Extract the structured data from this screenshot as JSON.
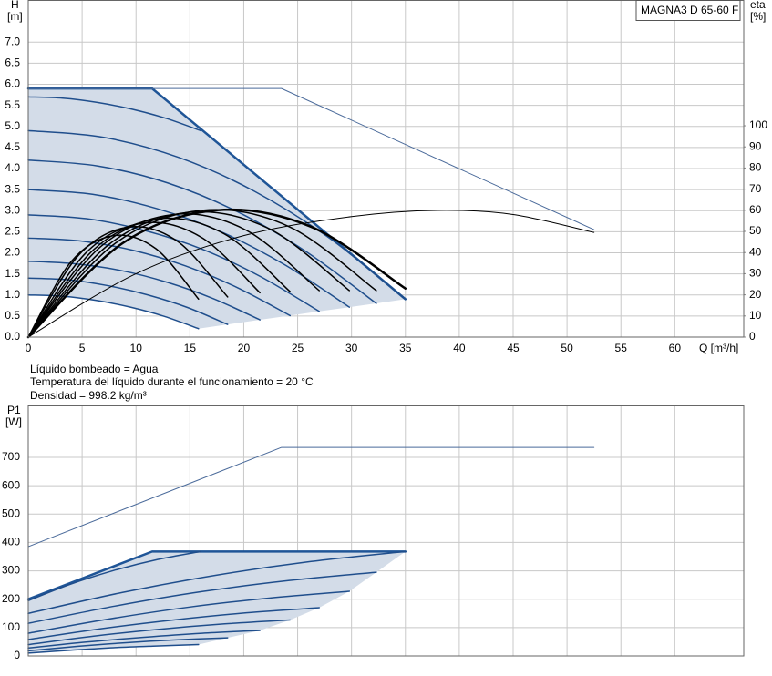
{
  "chart_data": [
    {
      "type": "line",
      "model": "MAGNA3 D 65-60 F",
      "y_label": "H",
      "y_unit": "[m]",
      "y2_label": "eta",
      "y2_unit": "[%]",
      "x_label": "Q [m³/h]",
      "notes": [
        "Líquido bombeado = Agua",
        "Temperatura del líquido durante el funcionamiento = 20 °C",
        "Densidad = 998.2 kg/m³"
      ],
      "xlim": [
        0,
        66.4
      ],
      "xticks": [
        0,
        5,
        10,
        15,
        20,
        25,
        30,
        35,
        40,
        45,
        50,
        55,
        60
      ],
      "xtick_labels": true,
      "ylim": [
        0,
        8
      ],
      "yticks": [
        {
          "value": 0,
          "label": "0.0"
        },
        0.5,
        {
          "value": 1,
          "label": "1.0"
        },
        1.5,
        {
          "value": 2,
          "label": "2.0"
        },
        2.5,
        {
          "value": 3,
          "label": "3.0"
        },
        3.5,
        {
          "value": 4,
          "label": "4.0"
        },
        4.5,
        {
          "value": 5,
          "label": "5.0"
        },
        5.5,
        {
          "value": 6,
          "label": "6.0"
        },
        6.5,
        {
          "value": 7,
          "label": "7.0"
        }
      ],
      "y2lim": [
        0,
        159.5
      ],
      "y2ticks": [
        0,
        10,
        20,
        30,
        40,
        50,
        60,
        70,
        80,
        90,
        100
      ],
      "grid": true,
      "area_color": "#d3dce8",
      "series": [
        {
          "x": [
            0,
            11.5,
            35
          ],
          "values": [
            5.9,
            5.9,
            0.9
          ],
          "color": "#1f5597",
          "width": 2.5,
          "smooth": false
        },
        {
          "x": [
            0,
            23.5,
            52.5
          ],
          "values": [
            5.9,
            5.9,
            2.55
          ],
          "color": "#4a6a9a",
          "width": 1,
          "smooth": false
        },
        {
          "x": [
            0,
            3.2,
            6.4,
            9.6,
            12.8,
            16
          ],
          "values": [
            5.7,
            5.67,
            5.57,
            5.41,
            5.19,
            4.9
          ],
          "color": "#1f4e8c",
          "width": 1.5,
          "smooth": true
        },
        {
          "x": [
            0,
            7,
            14,
            21,
            28,
            35
          ],
          "values": [
            4.9,
            4.74,
            4.26,
            3.46,
            2.34,
            0.9
          ],
          "color": "#1f4e8c",
          "width": 1.5,
          "smooth": true
        },
        {
          "x": [
            0,
            6.46,
            12.92,
            19.38,
            25.84,
            32.3
          ],
          "values": [
            4.2,
            4.06,
            3.66,
            2.98,
            2.02,
            0.8
          ],
          "color": "#1f4e8c",
          "width": 1.5,
          "smooth": true
        },
        {
          "x": [
            0,
            5.96,
            11.92,
            17.88,
            23.84,
            29.8
          ],
          "values": [
            3.5,
            3.39,
            3.05,
            2.5,
            1.71,
            0.71
          ],
          "color": "#1f4e8c",
          "width": 1.5,
          "smooth": true
        },
        {
          "x": [
            0,
            5.4,
            10.8,
            16.2,
            21.6,
            27
          ],
          "values": [
            2.9,
            2.81,
            2.53,
            2.08,
            1.43,
            0.61
          ],
          "color": "#1f4e8c",
          "width": 1.5,
          "smooth": true
        },
        {
          "x": [
            0,
            4.86,
            9.72,
            14.58,
            19.44,
            24.3
          ],
          "values": [
            2.35,
            2.28,
            2.06,
            1.69,
            1.17,
            0.51
          ],
          "color": "#1f4e8c",
          "width": 1.5,
          "smooth": true
        },
        {
          "x": [
            0,
            4.3,
            8.6,
            12.9,
            17.2,
            21.5
          ],
          "values": [
            1.8,
            1.74,
            1.58,
            1.3,
            0.91,
            0.41
          ],
          "color": "#1f4e8c",
          "width": 1.5,
          "smooth": true
        },
        {
          "x": [
            0,
            3.7,
            7.4,
            11.1,
            14.8,
            18.5
          ],
          "values": [
            1.4,
            1.36,
            1.22,
            1.0,
            0.7,
            0.3
          ],
          "color": "#1f4e8c",
          "width": 1.5,
          "smooth": true
        },
        {
          "x": [
            0,
            3.16,
            6.32,
            9.48,
            12.64,
            15.8
          ],
          "values": [
            1.0,
            0.97,
            0.87,
            0.71,
            0.49,
            0.2
          ],
          "color": "#1f4e8c",
          "width": 1.5,
          "smooth": true
        },
        {
          "x": [
            0,
            10,
            20,
            30,
            38,
            45,
            52.5
          ],
          "values": [
            0,
            30,
            48,
            57,
            60,
            58,
            49.5
          ],
          "color": "#000000",
          "width": 1,
          "smooth": true,
          "axis": "y2"
        },
        {
          "x": [
            0,
            8.75,
            17.5,
            26.25,
            35
          ],
          "values": [
            0,
            44.4,
            60,
            52.2,
            23
          ],
          "color": "#000000",
          "width": 2.5,
          "smooth": true,
          "axis": "y2"
        },
        {
          "x": [
            0,
            8.08,
            16.15,
            24.23,
            32.3
          ],
          "values": [
            0,
            44.4,
            60,
            52.2,
            22
          ],
          "color": "#000000",
          "width": 1.5,
          "smooth": true,
          "axis": "y2"
        },
        {
          "x": [
            0,
            7.45,
            14.9,
            22.35,
            29.8
          ],
          "values": [
            0,
            43.7,
            59,
            51.3,
            22
          ],
          "color": "#000000",
          "width": 1.5,
          "smooth": true,
          "axis": "y2"
        },
        {
          "x": [
            0,
            6.75,
            13.5,
            20.25,
            27
          ],
          "values": [
            0,
            42.9,
            58,
            50.5,
            22
          ],
          "color": "#000000",
          "width": 1.5,
          "smooth": true,
          "axis": "y2"
        },
        {
          "x": [
            0,
            6.08,
            12.15,
            18.23,
            24.3
          ],
          "values": [
            0,
            41.4,
            56,
            48.7,
            21.5
          ],
          "color": "#000000",
          "width": 1.5,
          "smooth": true,
          "axis": "y2"
        },
        {
          "x": [
            0,
            5.38,
            10.75,
            16.13,
            21.5
          ],
          "values": [
            0,
            40,
            54,
            47,
            21
          ],
          "color": "#000000",
          "width": 1.5,
          "smooth": true,
          "axis": "y2"
        },
        {
          "x": [
            0,
            4.63,
            9.25,
            13.88,
            18.5
          ],
          "values": [
            0,
            38.5,
            52,
            45.2,
            19
          ],
          "color": "#000000",
          "width": 1.5,
          "smooth": true,
          "axis": "y2"
        },
        {
          "x": [
            0,
            3.95,
            7.9,
            11.85,
            15.8
          ],
          "values": [
            0,
            35.5,
            48,
            41.8,
            18
          ],
          "color": "#000000",
          "width": 1.5,
          "smooth": true,
          "axis": "y2"
        }
      ]
    },
    {
      "type": "line",
      "y_label": "P1",
      "y_unit": "[W]",
      "xlim": [
        0,
        66.4
      ],
      "xticks": [
        0,
        5,
        10,
        15,
        20,
        25,
        30,
        35,
        40,
        45,
        50,
        55,
        60
      ],
      "xtick_labels": false,
      "ylim": [
        0,
        883
      ],
      "yticks": [
        0,
        100,
        200,
        300,
        400,
        500,
        600,
        700
      ],
      "grid": true,
      "area_color": "#d3dce8",
      "series": [
        {
          "x": [
            0,
            11.5,
            35
          ],
          "values": [
            200,
            368,
            368
          ],
          "color": "#1f5597",
          "width": 2.5,
          "smooth": false
        },
        {
          "x": [
            0,
            23.5,
            52.5
          ],
          "values": [
            385,
            735,
            735
          ],
          "color": "#4a6a9a",
          "width": 1,
          "smooth": false
        },
        {
          "x": [
            0,
            4,
            8,
            12,
            16
          ],
          "values": [
            195,
            254,
            302,
            340,
            368
          ],
          "color": "#1f4e8c",
          "width": 1.5,
          "smooth": true
        },
        {
          "x": [
            0,
            8.75,
            17.5,
            26.25,
            35
          ],
          "values": [
            150,
            224,
            285,
            333,
            368
          ],
          "color": "#1f4e8c",
          "width": 1.5,
          "smooth": true
        },
        {
          "x": [
            0,
            8.08,
            16.15,
            24.23,
            32.3
          ],
          "values": [
            115,
            176,
            227,
            266,
            295
          ],
          "color": "#1f4e8c",
          "width": 1.5,
          "smooth": true
        },
        {
          "x": [
            0,
            7.45,
            14.9,
            22.35,
            29.8
          ],
          "values": [
            80,
            130,
            172,
            204,
            228
          ],
          "color": "#1f4e8c",
          "width": 1.5,
          "smooth": true
        },
        {
          "x": [
            0,
            6.75,
            13.5,
            20.25,
            27
          ],
          "values": [
            58,
            96,
            127,
            152,
            170
          ],
          "color": "#1f4e8c",
          "width": 1.5,
          "smooth": true
        },
        {
          "x": [
            0,
            6.08,
            12.15,
            18.23,
            24.3
          ],
          "values": [
            40,
            70,
            94,
            113,
            127
          ],
          "color": "#1f4e8c",
          "width": 1.5,
          "smooth": true
        },
        {
          "x": [
            0,
            5.38,
            10.75,
            16.13,
            21.5
          ],
          "values": [
            28,
            49,
            66,
            80,
            90
          ],
          "color": "#1f4e8c",
          "width": 1.5,
          "smooth": true
        },
        {
          "x": [
            0,
            4.63,
            9.25,
            13.88,
            18.5
          ],
          "values": [
            18,
            34,
            47,
            57,
            64
          ],
          "color": "#1f4e8c",
          "width": 1.5,
          "smooth": true
        },
        {
          "x": [
            0,
            3.95,
            7.9,
            11.85,
            15.8
          ],
          "values": [
            10,
            20,
            29,
            35,
            40
          ],
          "color": "#1f4e8c",
          "width": 1.5,
          "smooth": true
        }
      ]
    }
  ]
}
